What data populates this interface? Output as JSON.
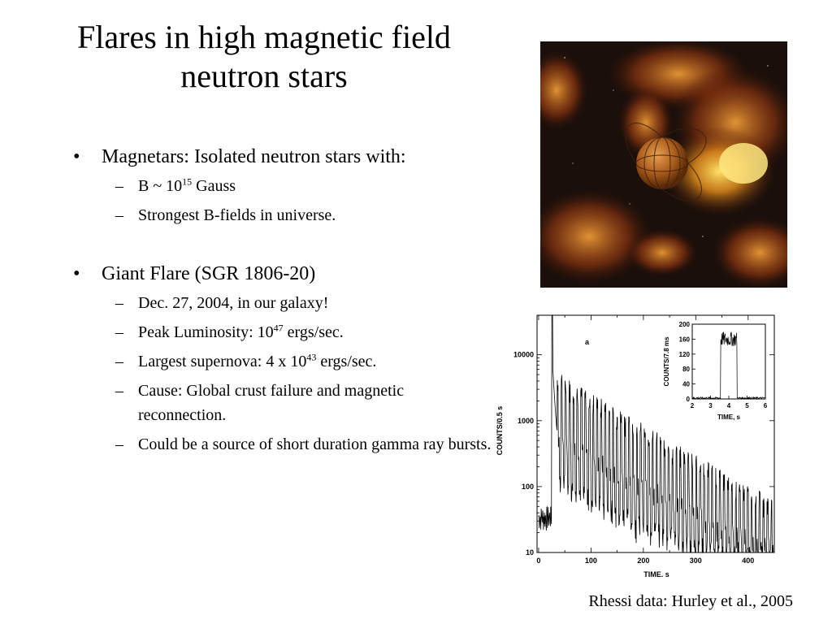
{
  "slide": {
    "title_line1": "Flares in high magnetic field",
    "title_line2": "neutron stars"
  },
  "bullets": {
    "b1": {
      "marker": "•",
      "text": "Magnetars: Isolated neutron stars with:"
    },
    "b1_sub": {
      "s1": {
        "marker": "–",
        "pre": "B ~ 10",
        "sup": "15",
        "post": " Gauss"
      },
      "s2": {
        "marker": "–",
        "text": "Strongest B-fields in universe."
      }
    },
    "b2": {
      "marker": "•",
      "text": "Giant Flare (SGR 1806-20)"
    },
    "b2_sub": {
      "s1": {
        "marker": "–",
        "text": "Dec. 27, 2004, in our galaxy!"
      },
      "s2": {
        "marker": "–",
        "pre": "Peak Luminosity: 10",
        "sup": "47",
        "post": " ergs/sec."
      },
      "s3": {
        "marker": "–",
        "pre": "Largest supernova: 4 x 10",
        "sup": "43",
        "post": " ergs/sec."
      },
      "s4": {
        "marker": "–",
        "text": "Cause: Global crust failure and magnetic reconnection."
      },
      "s5": {
        "marker": "–",
        "text": "Could be a source of short duration gamma ray bursts."
      }
    }
  },
  "figure": {
    "panel_label": "a",
    "main": {
      "xlabel": "TIME, s",
      "ylabel": "COUNTS/0.5 s",
      "xticks": [
        "0",
        "100",
        "200",
        "300",
        "400"
      ],
      "yticks": [
        "10",
        "100",
        "1000",
        "10000"
      ]
    },
    "inset": {
      "xlabel": "TIME, s",
      "ylabel": "COUNTS/7.8 ms",
      "xticks": [
        "2",
        "3",
        "4",
        "5",
        "6"
      ],
      "yticks": [
        "0",
        "40",
        "80",
        "120",
        "160",
        "200"
      ]
    }
  },
  "caption": "Rhessi data: Hurley et al., 2005"
}
